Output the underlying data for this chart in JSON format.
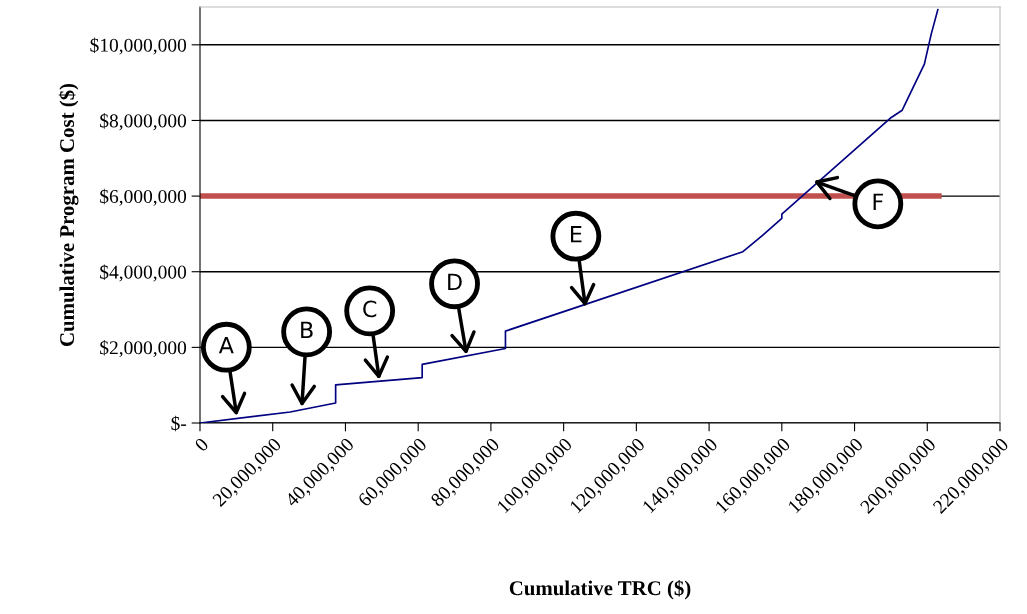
{
  "chart_data": {
    "type": "line",
    "xlabel": "Cumulative TRC ($)",
    "ylabel": "Cumulative Program Cost ($)",
    "series": [
      {
        "color": "#000080",
        "x": [
          0,
          24800000,
          37300000,
          37300000,
          61100000,
          61100000,
          84000000,
          84000000,
          149300000,
          154700000,
          160000000,
          160000000,
          190100000,
          193100000,
          193900000,
          199200000,
          201100000,
          202900000
        ],
        "values": [
          0,
          290000,
          530000,
          1010000,
          1200000,
          1550000,
          1970000,
          2430000,
          4530000,
          4960000,
          5410000,
          5520000,
          8080000,
          8270000,
          8430000,
          9490000,
          10290000,
          10930000
        ]
      },
      {
        "color": "#c0504d",
        "x": [
          0,
          203200000
        ],
        "values": [
          6000000,
          6000000
        ]
      }
    ],
    "annotations": [
      {
        "text": "A",
        "x": 10100000,
        "y": 190000
      },
      {
        "text": "B",
        "x": 28000000,
        "y": 430000
      },
      {
        "text": "C",
        "x": 49300000,
        "y": 1150000
      },
      {
        "text": "D",
        "x": 73300000,
        "y": 1810000
      },
      {
        "text": "E",
        "x": 106000000,
        "y": 3070000
      },
      {
        "text": "F",
        "x": 168800000,
        "y": 6400000
      }
    ],
    "xlim": [
      0,
      220000000
    ],
    "xticks": [
      {
        "value": 0,
        "label": "0"
      },
      {
        "value": 20000000,
        "label": "20,000,000"
      },
      {
        "value": 40000000,
        "label": "40,000,000"
      },
      {
        "value": 60000000,
        "label": "60,000,000"
      },
      {
        "value": 80000000,
        "label": "80,000,000"
      },
      {
        "value": 100000000,
        "label": "100,000,000"
      },
      {
        "value": 120000000,
        "label": "120,000,000"
      },
      {
        "value": 140000000,
        "label": "140,000,000"
      },
      {
        "value": 160000000,
        "label": "160,000,000"
      },
      {
        "value": 180000000,
        "label": "180,000,000"
      },
      {
        "value": 200000000,
        "label": "200,000,000"
      },
      {
        "value": 220000000,
        "label": "220,000,000"
      }
    ],
    "ylim": [
      0,
      11000000
    ],
    "yticks": [
      {
        "value": 0,
        "label": "$-"
      },
      {
        "value": 2000000,
        "label": "$2,000,000"
      },
      {
        "value": 4000000,
        "label": "$4,000,000"
      },
      {
        "value": 6000000,
        "label": "$6,000,000"
      },
      {
        "value": 8000000,
        "label": "$8,000,000"
      },
      {
        "value": 10000000,
        "label": "$10,000,000"
      }
    ],
    "grid": "y",
    "legend": false
  }
}
